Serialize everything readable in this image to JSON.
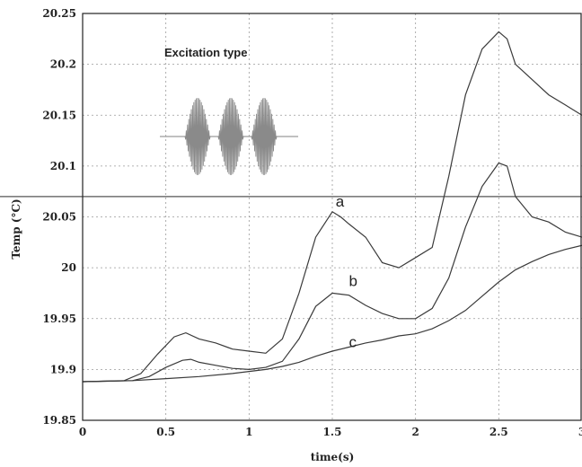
{
  "chart_data": {
    "type": "line",
    "xlabel": "time(s)",
    "ylabel": "Temp (°C)",
    "xlim": [
      0,
      3
    ],
    "ylim": [
      19.85,
      20.25
    ],
    "xticks": [
      0,
      0.5,
      1,
      1.5,
      2,
      2.5,
      3
    ],
    "xtick_labels": [
      "0",
      "0.5",
      "1",
      "1.5",
      "2",
      "2.5",
      "3"
    ],
    "yticks": [
      19.85,
      19.9,
      19.95,
      20,
      20.05,
      20.1,
      20.15,
      20.2,
      20.25
    ],
    "ytick_labels": [
      "19.85",
      "19.9",
      "19.95",
      "20",
      "20.05",
      "20.1",
      "20.15",
      "20.2",
      "20.25"
    ],
    "grid": true,
    "reference_line_y": 20.07,
    "series": [
      {
        "name": "a",
        "x": [
          0,
          0.25,
          0.35,
          0.45,
          0.55,
          0.62,
          0.7,
          0.8,
          0.9,
          1.0,
          1.1,
          1.2,
          1.3,
          1.4,
          1.5,
          1.55,
          1.6,
          1.7,
          1.8,
          1.9,
          2.0,
          2.1,
          2.2,
          2.3,
          2.4,
          2.5,
          2.55,
          2.6,
          2.7,
          2.8,
          2.9,
          3.0
        ],
        "y": [
          19.888,
          19.889,
          19.896,
          19.915,
          19.932,
          19.936,
          19.93,
          19.926,
          19.92,
          19.918,
          19.916,
          19.93,
          19.975,
          20.03,
          20.055,
          20.05,
          20.043,
          20.03,
          20.005,
          20.0,
          20.01,
          20.02,
          20.09,
          20.17,
          20.215,
          20.232,
          20.225,
          20.2,
          20.185,
          20.17,
          20.16,
          20.15
        ]
      },
      {
        "name": "b",
        "x": [
          0,
          0.3,
          0.4,
          0.5,
          0.6,
          0.65,
          0.7,
          0.8,
          0.9,
          1.0,
          1.1,
          1.2,
          1.3,
          1.4,
          1.5,
          1.6,
          1.7,
          1.8,
          1.9,
          2.0,
          2.1,
          2.2,
          2.3,
          2.4,
          2.5,
          2.55,
          2.6,
          2.7,
          2.8,
          2.9,
          3.0
        ],
        "y": [
          19.888,
          19.889,
          19.893,
          19.902,
          19.909,
          19.91,
          19.907,
          19.904,
          19.901,
          19.9,
          19.902,
          19.908,
          19.93,
          19.962,
          19.975,
          19.973,
          19.963,
          19.955,
          19.95,
          19.95,
          19.96,
          19.99,
          20.04,
          20.08,
          20.103,
          20.1,
          20.07,
          20.05,
          20.045,
          20.035,
          20.03
        ]
      },
      {
        "name": "c",
        "x": [
          0,
          0.3,
          0.5,
          0.7,
          0.9,
          1.0,
          1.1,
          1.2,
          1.3,
          1.4,
          1.5,
          1.6,
          1.7,
          1.8,
          1.9,
          2.0,
          2.1,
          2.2,
          2.3,
          2.4,
          2.5,
          2.6,
          2.7,
          2.8,
          2.9,
          3.0
        ],
        "y": [
          19.888,
          19.889,
          19.891,
          19.893,
          19.896,
          19.898,
          19.9,
          19.903,
          19.907,
          19.913,
          19.918,
          19.922,
          19.926,
          19.929,
          19.933,
          19.935,
          19.94,
          19.948,
          19.958,
          19.972,
          19.986,
          19.998,
          20.006,
          20.013,
          20.018,
          20.022
        ]
      }
    ],
    "annotations": [
      {
        "text": "a",
        "x": 1.52,
        "y": 20.06
      },
      {
        "text": "b",
        "x": 1.6,
        "y": 19.982
      },
      {
        "text": "c",
        "x": 1.6,
        "y": 19.922
      }
    ],
    "inset": {
      "title": "Excitation type",
      "pulse_count": 3
    }
  }
}
